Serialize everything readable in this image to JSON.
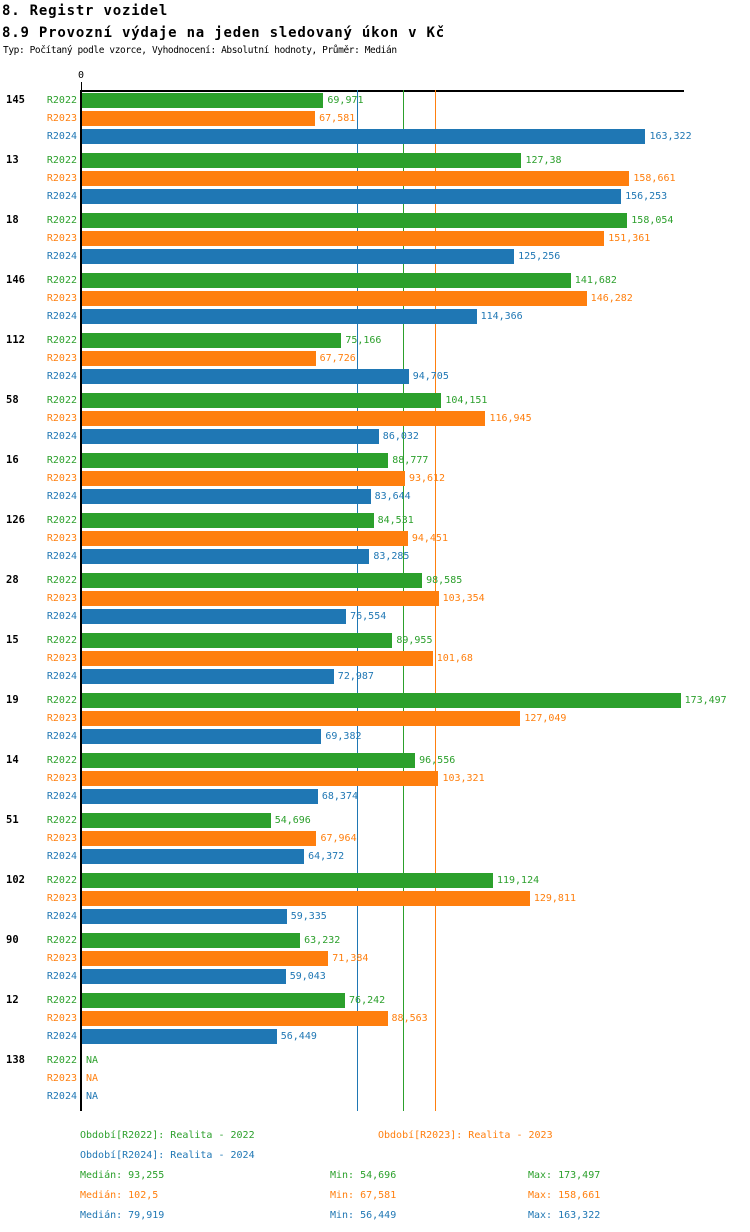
{
  "header": {
    "title": "8. Registr vozidel",
    "subtitle": "8.9 Provozní výdaje na jeden sledovaný úkon v Kč",
    "meta": "Typ: Počítaný podle vzorce, Vyhodnocení: Absolutní hodnoty, Průměr: Medián"
  },
  "chart_data": {
    "type": "bar",
    "orientation": "horizontal",
    "title": "8.9 Provozní výdaje na jeden sledovaný úkon v Kč",
    "x_axis": {
      "origin_label": "0",
      "min": 0,
      "max_value_shown": 173.497,
      "gridlines": "median reference lines only"
    },
    "series": [
      {
        "id": "R2022",
        "legend": "Období[R2022]: Realita - 2022",
        "color": "#2ca02c",
        "median": 93.255,
        "median_label": "93,255",
        "min_label": "54,696",
        "max_label": "173,497"
      },
      {
        "id": "R2023",
        "legend": "Období[R2023]: Realita - 2023",
        "color": "#ff7f0e",
        "median": 102.5,
        "median_label": "102,5",
        "min_label": "67,581",
        "max_label": "158,661"
      },
      {
        "id": "R2024",
        "legend": "Období[R2024]: Realita - 2024",
        "color": "#1f77b4",
        "median": 79.919,
        "median_label": "79,919",
        "min_label": "56,449",
        "max_label": "163,322"
      }
    ],
    "groups": [
      {
        "category": "145",
        "values": [
          69.971,
          67.581,
          163.322
        ],
        "labels": [
          "69,971",
          "67,581",
          "163,322"
        ]
      },
      {
        "category": "13",
        "values": [
          127.38,
          158.661,
          156.253
        ],
        "labels": [
          "127,38",
          "158,661",
          "156,253"
        ]
      },
      {
        "category": "18",
        "values": [
          158.054,
          151.361,
          125.256
        ],
        "labels": [
          "158,054",
          "151,361",
          "125,256"
        ]
      },
      {
        "category": "146",
        "values": [
          141.682,
          146.282,
          114.366
        ],
        "labels": [
          "141,682",
          "146,282",
          "114,366"
        ]
      },
      {
        "category": "112",
        "values": [
          75.166,
          67.726,
          94.705
        ],
        "labels": [
          "75,166",
          "67,726",
          "94,705"
        ]
      },
      {
        "category": "58",
        "values": [
          104.151,
          116.945,
          86.032
        ],
        "labels": [
          "104,151",
          "116,945",
          "86,032"
        ]
      },
      {
        "category": "16",
        "values": [
          88.777,
          93.612,
          83.644
        ],
        "labels": [
          "88,777",
          "93,612",
          "83,644"
        ]
      },
      {
        "category": "126",
        "values": [
          84.531,
          94.451,
          83.285
        ],
        "labels": [
          "84,531",
          "94,451",
          "83,285"
        ]
      },
      {
        "category": "28",
        "values": [
          98.585,
          103.354,
          76.554
        ],
        "labels": [
          "98,585",
          "103,354",
          "76,554"
        ]
      },
      {
        "category": "15",
        "values": [
          89.955,
          101.68,
          72.987
        ],
        "labels": [
          "89,955",
          "101,68",
          "72,987"
        ]
      },
      {
        "category": "19",
        "values": [
          173.497,
          127.049,
          69.382
        ],
        "labels": [
          "173,497",
          "127,049",
          "69,382"
        ]
      },
      {
        "category": "14",
        "values": [
          96.556,
          103.321,
          68.374
        ],
        "labels": [
          "96,556",
          "103,321",
          "68,374"
        ]
      },
      {
        "category": "51",
        "values": [
          54.696,
          67.964,
          64.372
        ],
        "labels": [
          "54,696",
          "67,964",
          "64,372"
        ]
      },
      {
        "category": "102",
        "values": [
          119.124,
          129.811,
          59.335
        ],
        "labels": [
          "119,124",
          "129,811",
          "59,335"
        ]
      },
      {
        "category": "90",
        "values": [
          63.232,
          71.384,
          59.043
        ],
        "labels": [
          "63,232",
          "71,384",
          "59,043"
        ]
      },
      {
        "category": "12",
        "values": [
          76.242,
          88.563,
          56.449
        ],
        "labels": [
          "76,242",
          "88,563",
          "56,449"
        ]
      },
      {
        "category": "138",
        "values": [
          null,
          null,
          null
        ],
        "labels": [
          "NA",
          "NA",
          "NA"
        ]
      }
    ]
  },
  "footer": {
    "legends": {
      "r2022": "Období[R2022]: Realita - 2022",
      "r2023": "Období[R2023]: Realita - 2023",
      "r2024": "Období[R2024]: Realita - 2024"
    },
    "stats": [
      {
        "median": "Medián: 93,255",
        "min": "Min: 54,696",
        "max": "Max: 173,497"
      },
      {
        "median": "Medián: 102,5",
        "min": "Min: 67,581",
        "max": "Max: 158,661"
      },
      {
        "median": "Medián: 79,919",
        "min": "Min: 56,449",
        "max": "Max: 163,322"
      }
    ]
  }
}
